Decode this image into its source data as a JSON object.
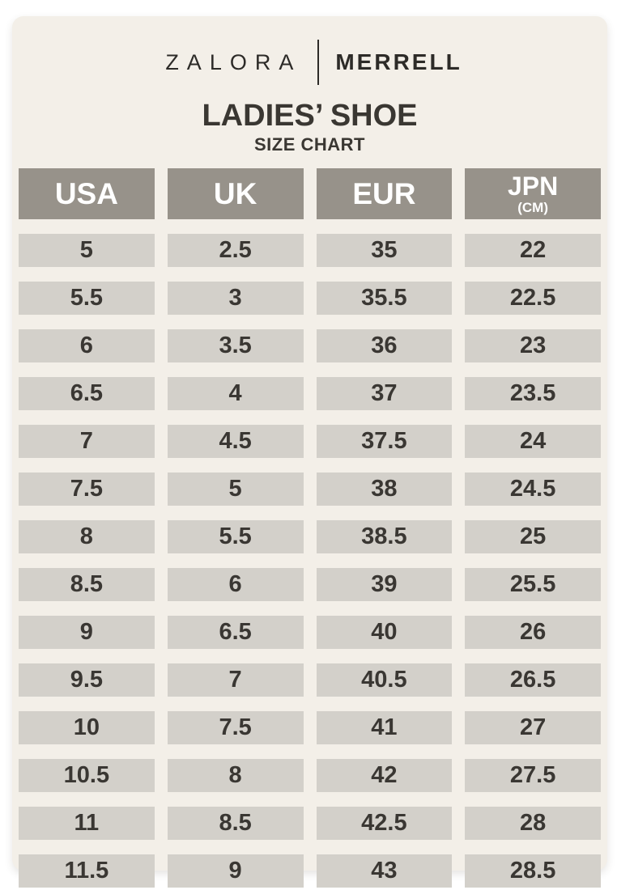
{
  "brand": {
    "left": "ZALORA",
    "right": "MERRELL"
  },
  "chart_data": {
    "type": "table",
    "title": "LADIES’ SHOE",
    "subtitle": "SIZE CHART",
    "columns": [
      {
        "label": "USA",
        "sub": ""
      },
      {
        "label": "UK",
        "sub": ""
      },
      {
        "label": "EUR",
        "sub": ""
      },
      {
        "label": "JPN",
        "sub": "(CM)"
      }
    ],
    "rows": [
      [
        "5",
        "2.5",
        "35",
        "22"
      ],
      [
        "5.5",
        "3",
        "35.5",
        "22.5"
      ],
      [
        "6",
        "3.5",
        "36",
        "23"
      ],
      [
        "6.5",
        "4",
        "37",
        "23.5"
      ],
      [
        "7",
        "4.5",
        "37.5",
        "24"
      ],
      [
        "7.5",
        "5",
        "38",
        "24.5"
      ],
      [
        "8",
        "5.5",
        "38.5",
        "25"
      ],
      [
        "8.5",
        "6",
        "39",
        "25.5"
      ],
      [
        "9",
        "6.5",
        "40",
        "26"
      ],
      [
        "9.5",
        "7",
        "40.5",
        "26.5"
      ],
      [
        "10",
        "7.5",
        "41",
        "27"
      ],
      [
        "10.5",
        "8",
        "42",
        "27.5"
      ],
      [
        "11",
        "8.5",
        "42.5",
        "28"
      ],
      [
        "11.5",
        "9",
        "43",
        "28.5"
      ]
    ]
  },
  "colors": {
    "page_bg": "#ffffff",
    "card_bg": "#f3efe8",
    "header_bg": "#97928a",
    "cell_bg": "#d3d0ca",
    "header_text": "#ffffff",
    "cell_text": "#3a3733",
    "brand_text": "#2d2b28",
    "title_text": "#3a3732"
  }
}
